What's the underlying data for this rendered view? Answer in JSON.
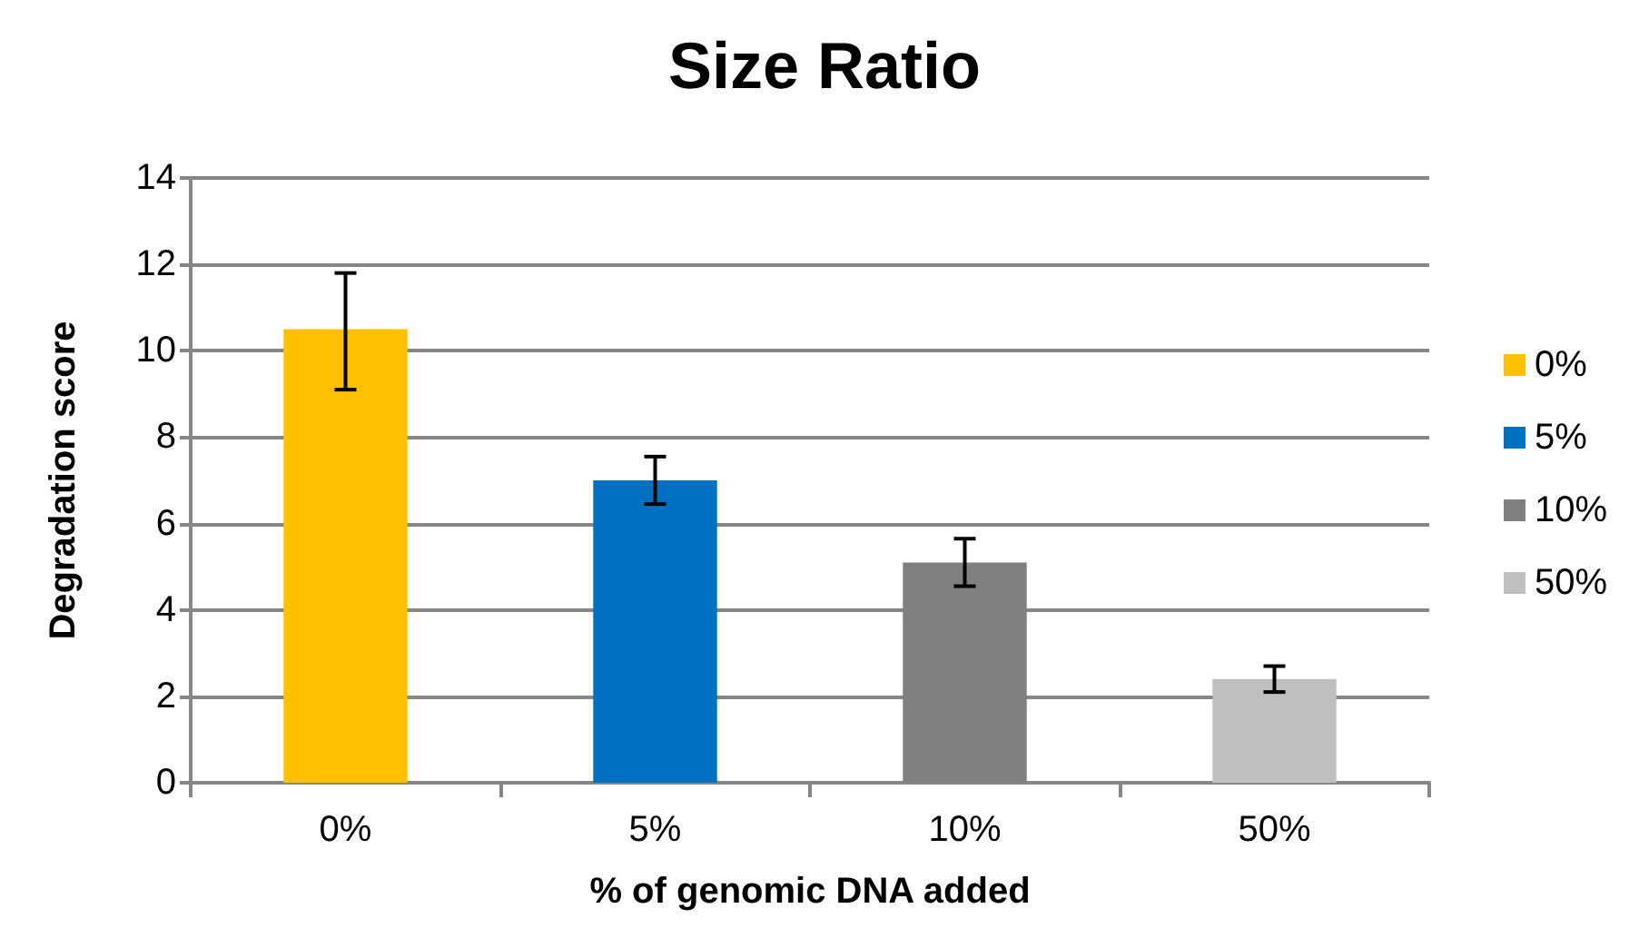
{
  "chart_data": {
    "type": "bar",
    "title": "Size Ratio",
    "xlabel": "% of genomic DNA added",
    "ylabel": "Degradation score",
    "categories": [
      "0%",
      "5%",
      "10%",
      "50%"
    ],
    "series": [
      {
        "name": "0%",
        "color": "#ffc000",
        "values": [
          10.5,
          null,
          null,
          null
        ],
        "errors": [
          [
            9.1,
            11.8
          ],
          null,
          null,
          null
        ]
      },
      {
        "name": "5%",
        "color": "#0070c0",
        "values": [
          null,
          7.0,
          null,
          null
        ],
        "errors": [
          null,
          0.55,
          null,
          null
        ]
      },
      {
        "name": "10%",
        "color": "#808080",
        "values": [
          null,
          null,
          5.1,
          null
        ],
        "errors": [
          null,
          null,
          0.55,
          null
        ]
      },
      {
        "name": "50%",
        "color": "#bfbfbf",
        "values": [
          null,
          null,
          null,
          2.4
        ],
        "errors": [
          null,
          null,
          null,
          0.3
        ]
      }
    ],
    "stacked": true,
    "ylim": [
      0,
      14
    ],
    "yticks": [
      0,
      2,
      4,
      6,
      8,
      10,
      12,
      14
    ],
    "grid": "y",
    "legend": "right"
  }
}
